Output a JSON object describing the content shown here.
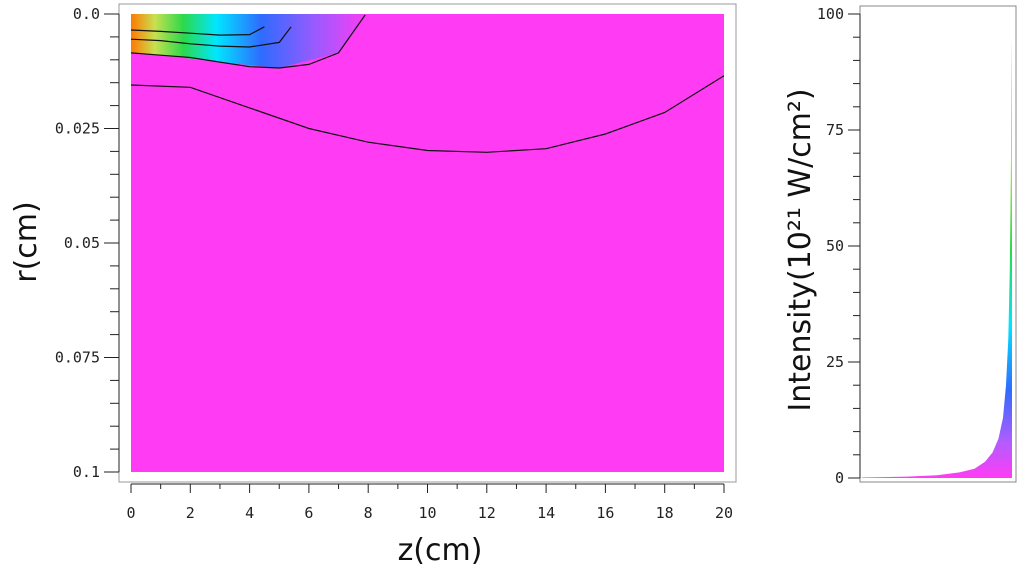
{
  "chart_data": [
    {
      "type": "heatmap",
      "xlabel": "z(cm)",
      "ylabel": "r(cm)",
      "xlim": [
        0,
        20
      ],
      "ylim": [
        0,
        0.1
      ],
      "y_inverted": true,
      "x_ticks": [
        "0",
        "2",
        "4",
        "6",
        "8",
        "10",
        "12",
        "14",
        "16",
        "18",
        "20"
      ],
      "y_ticks": [
        "0.0",
        "0.025",
        "0.05",
        "0.075",
        "0.1"
      ],
      "colormap": [
        "#ff3cf4",
        "#c85aff",
        "#2f6bff",
        "#00e6ff",
        "#2cd94a",
        "#b4e05a",
        "#ff7a00"
      ],
      "contour_lines": [
        {
          "z": [
            0,
            1,
            2,
            3,
            4,
            4.5
          ],
          "r": [
            0.0035,
            0.0038,
            0.0042,
            0.0046,
            0.0045,
            0.0028
          ]
        },
        {
          "z": [
            0,
            1,
            2,
            3,
            4,
            5,
            5.4
          ],
          "r": [
            0.0055,
            0.0058,
            0.0065,
            0.007,
            0.0072,
            0.0062,
            0.0028
          ]
        },
        {
          "z": [
            0,
            1,
            2,
            3,
            4,
            5,
            6,
            7,
            7.9
          ],
          "r": [
            0.0085,
            0.009,
            0.0095,
            0.0105,
            0.0115,
            0.0118,
            0.011,
            0.0085,
            0.0002
          ]
        },
        {
          "z": [
            0,
            2,
            4,
            6,
            8,
            10,
            12,
            14,
            16,
            18,
            20
          ],
          "r": [
            0.0155,
            0.016,
            0.0205,
            0.025,
            0.028,
            0.0298,
            0.0302,
            0.0294,
            0.0262,
            0.0215,
            0.0135
          ]
        }
      ]
    },
    {
      "type": "area",
      "ylabel": "Intensity(10²¹ W/cm²)",
      "ylim": [
        0,
        100
      ],
      "y_ticks": [
        "0",
        "25",
        "50",
        "75",
        "100"
      ],
      "x": [
        0.0,
        0.3,
        0.5,
        0.65,
        0.75,
        0.82,
        0.87,
        0.91,
        0.94,
        0.96,
        0.975,
        0.985,
        0.993,
        1.0
      ],
      "values": [
        0.1,
        0.3,
        0.6,
        1.2,
        2.0,
        3.5,
        5.5,
        8.5,
        13,
        20,
        30,
        45,
        70,
        95
      ]
    }
  ]
}
